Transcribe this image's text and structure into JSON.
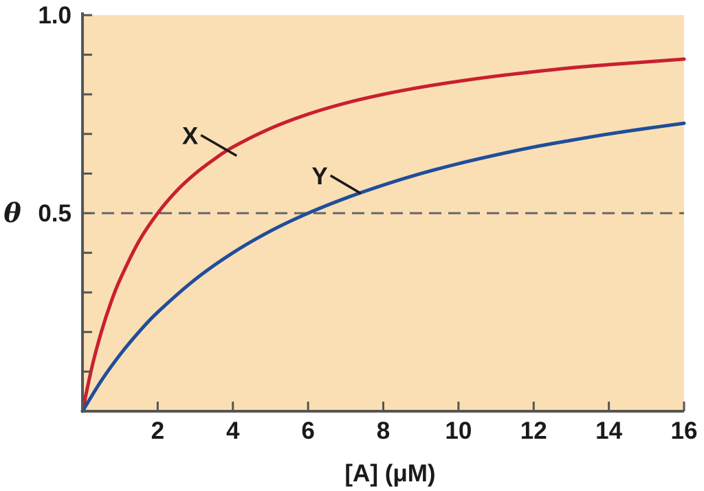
{
  "chart_data": {
    "type": "line",
    "title": "",
    "xlabel": "[A] (μM)",
    "ylabel": "θ",
    "xlim": [
      0,
      16
    ],
    "ylim": [
      0,
      1.0
    ],
    "x_ticks": [
      {
        "value": 2,
        "label": "2"
      },
      {
        "value": 4,
        "label": "4"
      },
      {
        "value": 6,
        "label": "6"
      },
      {
        "value": 8,
        "label": "8"
      },
      {
        "value": 10,
        "label": "10"
      },
      {
        "value": 12,
        "label": "12"
      },
      {
        "value": 14,
        "label": "14"
      },
      {
        "value": 16,
        "label": "16"
      }
    ],
    "y_ticks": [
      {
        "value": 0.1,
        "label": ""
      },
      {
        "value": 0.2,
        "label": ""
      },
      {
        "value": 0.3,
        "label": ""
      },
      {
        "value": 0.4,
        "label": ""
      },
      {
        "value": 0.5,
        "label": "0.5"
      },
      {
        "value": 0.6,
        "label": ""
      },
      {
        "value": 0.7,
        "label": ""
      },
      {
        "value": 0.8,
        "label": ""
      },
      {
        "value": 0.9,
        "label": ""
      },
      {
        "value": 1.0,
        "label": "1.0"
      }
    ],
    "reference_line": {
      "y": 0.5,
      "style": "dashed",
      "color": "#666666"
    },
    "background_color": "#fbdfb4",
    "grid": false,
    "series": [
      {
        "name": "X",
        "color": "#c8202f",
        "x": [
          0,
          0.25,
          0.5,
          0.75,
          1,
          1.5,
          2,
          2.5,
          3,
          3.5,
          4,
          5,
          6,
          7,
          8,
          9,
          10,
          11,
          12,
          13,
          14,
          15,
          16
        ],
        "y": [
          0,
          0.111,
          0.2,
          0.273,
          0.333,
          0.429,
          0.5,
          0.556,
          0.6,
          0.636,
          0.667,
          0.714,
          0.75,
          0.778,
          0.8,
          0.818,
          0.833,
          0.846,
          0.857,
          0.867,
          0.875,
          0.882,
          0.889
        ],
        "label_x": 4.1,
        "label_y": 0.645
      },
      {
        "name": "Y",
        "color": "#1f4e9a",
        "x": [
          0,
          0.5,
          1,
          1.5,
          2,
          3,
          4,
          5,
          6,
          7,
          8,
          9,
          10,
          11,
          12,
          13,
          14,
          15,
          16
        ],
        "y": [
          0,
          0.077,
          0.143,
          0.2,
          0.25,
          0.333,
          0.4,
          0.455,
          0.5,
          0.538,
          0.571,
          0.6,
          0.625,
          0.647,
          0.667,
          0.684,
          0.7,
          0.714,
          0.727
        ],
        "label_x": 7.4,
        "label_y": 0.55
      }
    ]
  }
}
